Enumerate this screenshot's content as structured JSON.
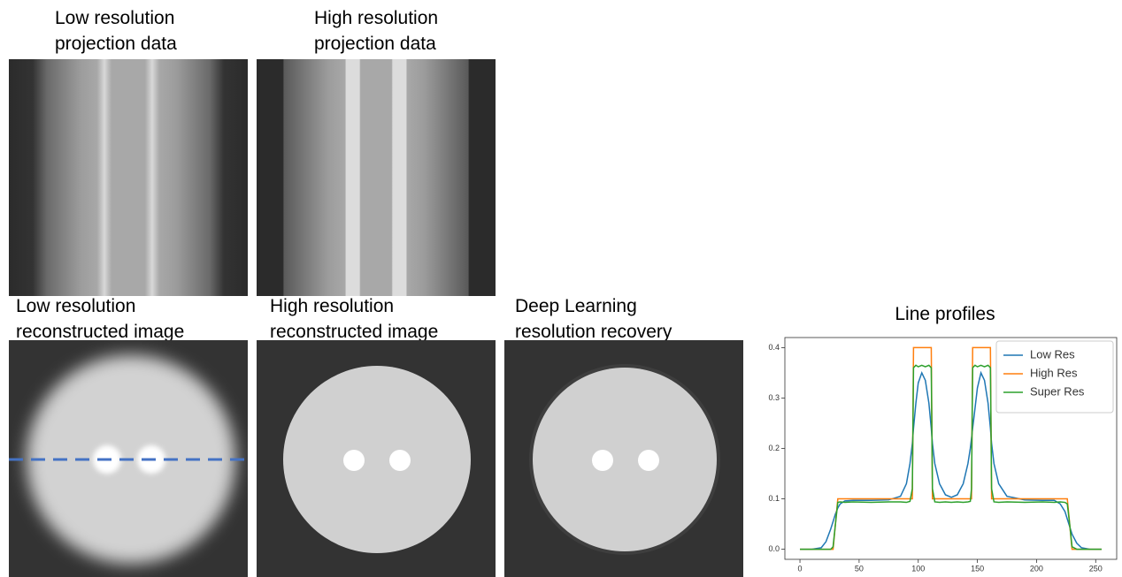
{
  "panels": [
    {
      "title": [
        "Low resolution",
        "projection data"
      ]
    },
    {
      "title": [
        "High resolution",
        "projection data"
      ]
    },
    {
      "title": [
        "Low resolution",
        "reconstructed image"
      ]
    },
    {
      "title": [
        "High resolution",
        "reconstructed image"
      ]
    },
    {
      "title": [
        "Deep Learning",
        "resolution recovery"
      ]
    }
  ],
  "chart_data": {
    "type": "line",
    "title": "Line profiles",
    "x": [
      0,
      10,
      18,
      22,
      26,
      28,
      30,
      32,
      34,
      38,
      45,
      60,
      75,
      85,
      90,
      93,
      95,
      96,
      98,
      100,
      103,
      106,
      109,
      111,
      112,
      114,
      118,
      123,
      128,
      133,
      138,
      142,
      144,
      145,
      146,
      148,
      150,
      153,
      156,
      159,
      161,
      162,
      164,
      168,
      175,
      190,
      205,
      215,
      220,
      224,
      226,
      228,
      230,
      234,
      238,
      245,
      255
    ],
    "series": [
      {
        "name": "Low Res",
        "color": "#1f77b4",
        "values": [
          0,
          0,
          0.003,
          0.015,
          0.04,
          0.055,
          0.07,
          0.082,
          0.09,
          0.096,
          0.097,
          0.097,
          0.098,
          0.105,
          0.13,
          0.17,
          0.21,
          0.24,
          0.29,
          0.33,
          0.35,
          0.335,
          0.29,
          0.24,
          0.21,
          0.17,
          0.13,
          0.108,
          0.103,
          0.108,
          0.13,
          0.17,
          0.2,
          0.22,
          0.24,
          0.28,
          0.32,
          0.35,
          0.335,
          0.29,
          0.24,
          0.21,
          0.17,
          0.13,
          0.105,
          0.098,
          0.097,
          0.097,
          0.09,
          0.075,
          0.06,
          0.045,
          0.03,
          0.012,
          0.003,
          0,
          0
        ]
      },
      {
        "name": "High Res",
        "color": "#ff7f0e",
        "values": [
          0,
          0,
          0,
          0,
          0,
          0,
          0.05,
          0.1,
          0.1,
          0.1,
          0.1,
          0.1,
          0.1,
          0.1,
          0.1,
          0.1,
          0.1,
          0.4,
          0.4,
          0.4,
          0.4,
          0.4,
          0.4,
          0.4,
          0.1,
          0.1,
          0.1,
          0.1,
          0.1,
          0.1,
          0.1,
          0.1,
          0.1,
          0.1,
          0.4,
          0.4,
          0.4,
          0.4,
          0.4,
          0.4,
          0.4,
          0.1,
          0.1,
          0.1,
          0.1,
          0.1,
          0.1,
          0.1,
          0.1,
          0.1,
          0.1,
          0.05,
          0,
          0,
          0,
          0,
          0
        ]
      },
      {
        "name": "Super Res",
        "color": "#2ca02c",
        "values": [
          0,
          0,
          0,
          0,
          0,
          0.005,
          0.05,
          0.093,
          0.094,
          0.093,
          0.094,
          0.093,
          0.094,
          0.094,
          0.093,
          0.095,
          0.12,
          0.36,
          0.365,
          0.362,
          0.365,
          0.362,
          0.365,
          0.36,
          0.12,
          0.094,
          0.093,
          0.094,
          0.093,
          0.094,
          0.093,
          0.094,
          0.095,
          0.12,
          0.36,
          0.365,
          0.362,
          0.365,
          0.362,
          0.365,
          0.36,
          0.12,
          0.094,
          0.093,
          0.094,
          0.093,
          0.094,
          0.093,
          0.094,
          0.093,
          0.09,
          0.05,
          0.005,
          0,
          0,
          0,
          0
        ]
      }
    ],
    "xlim": [
      -12.75,
      267.75
    ],
    "xticks": [
      0,
      50,
      100,
      150,
      200,
      250
    ],
    "ylim": [
      -0.02,
      0.42
    ],
    "yticks": [
      {
        "value": 0,
        "label": "0.0"
      },
      0.1,
      0.2,
      0.3,
      0.4
    ],
    "legend": "upper right"
  }
}
